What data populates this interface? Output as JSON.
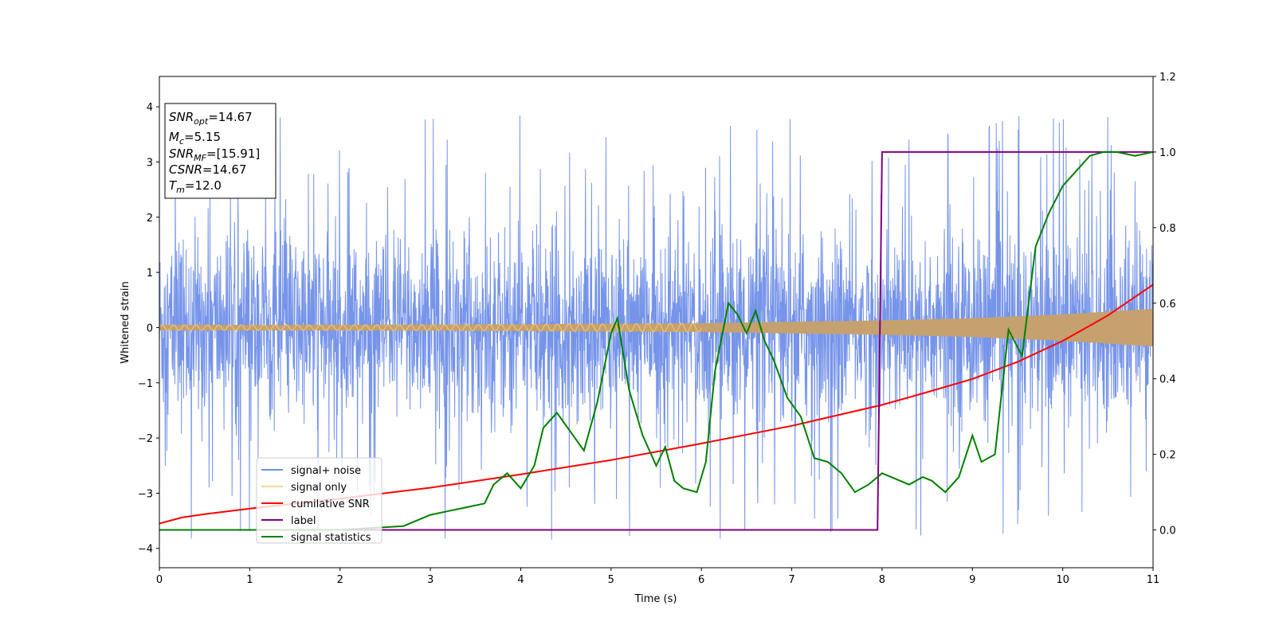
{
  "chart_data": {
    "type": "line",
    "xlabel": "Time (s)",
    "ylabel": "Whitened strain",
    "xlim": [
      0,
      11
    ],
    "ylim": [
      -4.35,
      4.55
    ],
    "y2lim": [
      -0.1,
      1.2
    ],
    "x_ticks": [
      "0",
      "1",
      "2",
      "3",
      "4",
      "5",
      "6",
      "7",
      "8",
      "9",
      "10",
      "11"
    ],
    "y_ticks": [
      "−4",
      "−3",
      "−2",
      "−1",
      "0",
      "1",
      "2",
      "3",
      "4"
    ],
    "y2_ticks": [
      "0.0",
      "0.2",
      "0.4",
      "0.6",
      "0.8",
      "1.0",
      "1.2"
    ],
    "legend_position": "lower-left",
    "info_box": {
      "snr_opt": {
        "base": "SNR",
        "sub": "opt",
        "value": "=14.67"
      },
      "mc": {
        "base": "M",
        "sub": "c",
        "value": "=5.15"
      },
      "snr_mf": {
        "base": "SNR",
        "sub": "MF",
        "value": "=[15.91]"
      },
      "csnr": {
        "base": "CSNR",
        "sub": "",
        "value": "=14.67"
      },
      "tm": {
        "base": "T",
        "sub": "m",
        "value": "=12.0"
      }
    },
    "series": [
      {
        "name": "signal+ noise",
        "color": "#6f8ee8",
        "axis": "left",
        "description_values": "noise band approximately within ±2.3 with spikes to ±3.9",
        "envelope": [
          -2.3,
          2.3
        ]
      },
      {
        "name": "signal only",
        "color": "#f5c26b",
        "axis": "left",
        "amplitude_x": [
          0,
          2,
          4,
          6,
          8,
          9,
          10,
          11
        ],
        "amplitude_y": [
          0.05,
          0.05,
          0.06,
          0.08,
          0.13,
          0.17,
          0.24,
          0.34
        ]
      },
      {
        "name": "cumilative SNR",
        "color": "#ff0000",
        "axis": "left",
        "x": [
          0,
          0.25,
          0.5,
          1,
          2,
          3,
          4,
          5,
          6,
          7,
          8,
          8.5,
          9,
          9.5,
          10,
          10.5,
          11
        ],
        "y": [
          -3.55,
          -3.44,
          -3.38,
          -3.28,
          -3.1,
          -2.9,
          -2.66,
          -2.4,
          -2.1,
          -1.78,
          -1.4,
          -1.17,
          -0.93,
          -0.62,
          -0.24,
          0.22,
          0.78
        ]
      },
      {
        "name": "label",
        "color": "#800080",
        "axis": "right",
        "x": [
          0,
          7.95,
          8.0,
          11
        ],
        "y": [
          0.0,
          0.0,
          1.0,
          1.0
        ]
      },
      {
        "name": "signal statistics",
        "color": "#008000",
        "axis": "right",
        "x": [
          0,
          1,
          2,
          2.7,
          3.0,
          3.2,
          3.4,
          3.6,
          3.7,
          3.85,
          4.0,
          4.15,
          4.25,
          4.4,
          4.55,
          4.7,
          4.85,
          5.0,
          5.07,
          5.2,
          5.35,
          5.5,
          5.6,
          5.7,
          5.8,
          5.95,
          6.05,
          6.15,
          6.3,
          6.4,
          6.5,
          6.6,
          6.7,
          6.8,
          6.95,
          7.1,
          7.25,
          7.4,
          7.55,
          7.7,
          7.85,
          8.0,
          8.1,
          8.3,
          8.45,
          8.55,
          8.7,
          8.85,
          9.0,
          9.1,
          9.25,
          9.4,
          9.55,
          9.7,
          9.85,
          10.0,
          10.15,
          10.3,
          10.45,
          10.6,
          10.8,
          11.0
        ],
        "y": [
          0.0,
          0.0,
          0.0,
          0.01,
          0.04,
          0.05,
          0.06,
          0.07,
          0.12,
          0.15,
          0.11,
          0.17,
          0.27,
          0.31,
          0.26,
          0.21,
          0.34,
          0.52,
          0.56,
          0.37,
          0.25,
          0.17,
          0.22,
          0.13,
          0.11,
          0.1,
          0.18,
          0.42,
          0.6,
          0.57,
          0.52,
          0.58,
          0.5,
          0.45,
          0.35,
          0.3,
          0.19,
          0.18,
          0.15,
          0.1,
          0.12,
          0.15,
          0.14,
          0.12,
          0.14,
          0.13,
          0.1,
          0.14,
          0.25,
          0.18,
          0.2,
          0.53,
          0.46,
          0.75,
          0.84,
          0.91,
          0.95,
          0.99,
          1.0,
          1.0,
          0.99,
          1.0
        ]
      }
    ]
  }
}
